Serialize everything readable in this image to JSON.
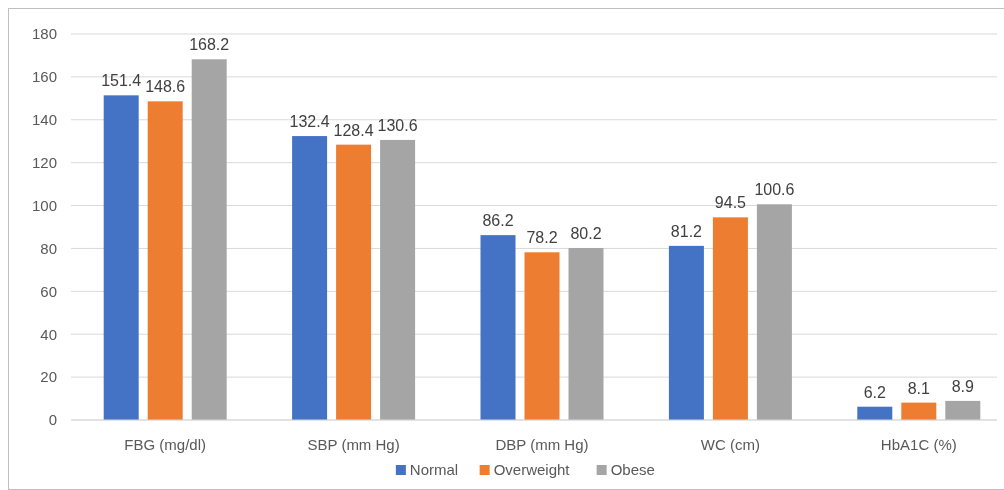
{
  "chart_data": {
    "type": "bar",
    "categories": [
      "FBG (mg/dl)",
      "SBP (mm Hg)",
      "DBP (mm Hg)",
      "WC (cm)",
      "HbA1C (%)"
    ],
    "series": [
      {
        "name": "Normal",
        "color": "#4472c4",
        "values": [
          151.4,
          132.4,
          86.2,
          81.2,
          6.2
        ]
      },
      {
        "name": "Overweight",
        "color": "#ed7d31",
        "values": [
          148.6,
          128.4,
          78.2,
          94.5,
          8.1
        ]
      },
      {
        "name": "Obese",
        "color": "#a5a5a5",
        "values": [
          168.2,
          130.6,
          80.2,
          100.6,
          8.9
        ]
      }
    ],
    "ylim": [
      0,
      180
    ],
    "yticks": [
      0,
      20,
      40,
      60,
      80,
      100,
      120,
      140,
      160,
      180
    ],
    "grid": "y",
    "legend": "bottom",
    "data_labels": true
  }
}
